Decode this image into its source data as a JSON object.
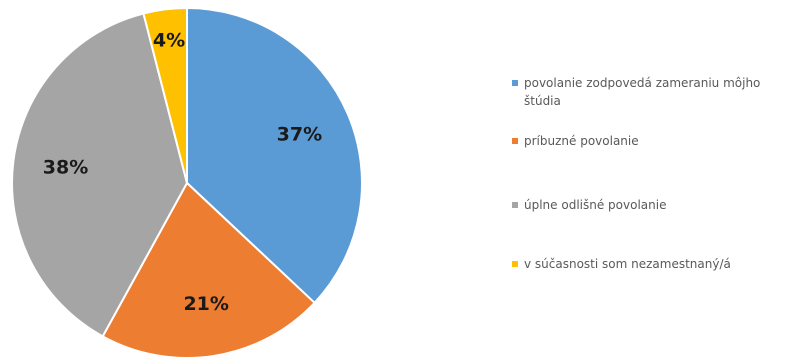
{
  "chart_data": {
    "type": "pie",
    "categories": [
      "povolanie zodpovedá zameraniu môjho štúdia",
      "príbuzné povolanie",
      "úplne odlišné povolanie",
      "v súčasnosti som nezamestnaný/á"
    ],
    "values": [
      37,
      21,
      38,
      4
    ],
    "value_labels": [
      "37%",
      "21%",
      "38%",
      "4%"
    ],
    "colors": [
      "#5B9BD5",
      "#ED7D31",
      "#A5A5A5",
      "#FFC000"
    ],
    "start_angle_deg": 0,
    "direction": "clockwise",
    "legend_position": "right",
    "slice_border_color": "#ffffff"
  }
}
